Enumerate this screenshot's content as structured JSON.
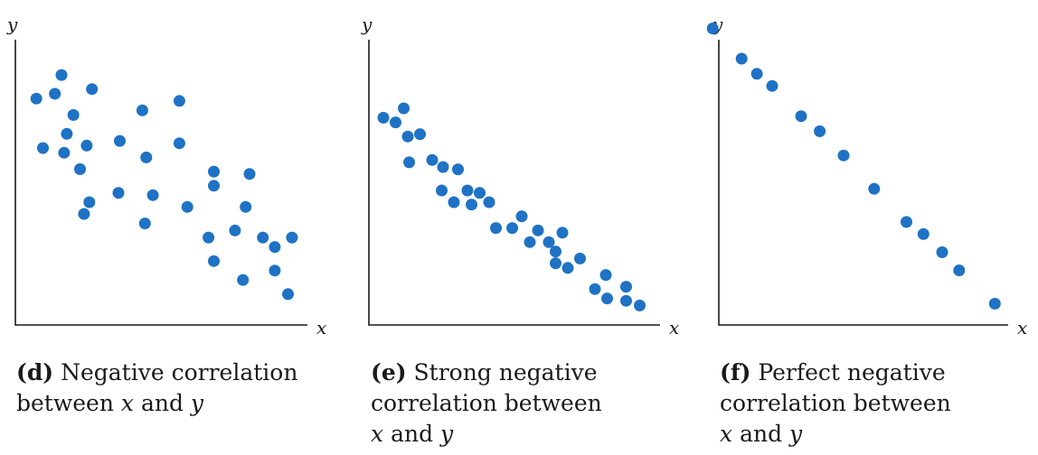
{
  "chart_data": [
    {
      "type": "scatter",
      "id": "d",
      "caption_letter": "(d)",
      "caption_pre": "Negative correlation",
      "caption_line2_pre": "between",
      "caption_var_x": "x",
      "caption_and": "and",
      "caption_var_y": "y",
      "xlabel": "x",
      "ylabel": "y",
      "xlim": [
        0,
        10
      ],
      "ylim": [
        0,
        10
      ],
      "grid": false,
      "color": "#1f72c4",
      "points": [
        {
          "x": 0.45,
          "y": 8.5
        },
        {
          "x": 0.7,
          "y": 6.4
        },
        {
          "x": 1.15,
          "y": 8.7
        },
        {
          "x": 1.4,
          "y": 9.5
        },
        {
          "x": 1.5,
          "y": 6.2
        },
        {
          "x": 1.6,
          "y": 7.0
        },
        {
          "x": 1.85,
          "y": 7.8
        },
        {
          "x": 2.1,
          "y": 5.5
        },
        {
          "x": 2.25,
          "y": 3.6
        },
        {
          "x": 2.35,
          "y": 6.5
        },
        {
          "x": 2.45,
          "y": 4.1
        },
        {
          "x": 2.55,
          "y": 8.9
        },
        {
          "x": 3.6,
          "y": 6.7
        },
        {
          "x": 3.55,
          "y": 4.5
        },
        {
          "x": 4.45,
          "y": 8.0
        },
        {
          "x": 4.6,
          "y": 6.0
        },
        {
          "x": 4.55,
          "y": 3.2
        },
        {
          "x": 4.85,
          "y": 4.4
        },
        {
          "x": 5.85,
          "y": 8.4
        },
        {
          "x": 5.85,
          "y": 6.6
        },
        {
          "x": 6.15,
          "y": 3.9
        },
        {
          "x": 6.95,
          "y": 2.6
        },
        {
          "x": 7.15,
          "y": 5.4
        },
        {
          "x": 7.15,
          "y": 4.8
        },
        {
          "x": 7.15,
          "y": 1.6
        },
        {
          "x": 7.95,
          "y": 2.9
        },
        {
          "x": 8.25,
          "y": 0.8
        },
        {
          "x": 8.35,
          "y": 3.9
        },
        {
          "x": 8.5,
          "y": 5.3
        },
        {
          "x": 9.0,
          "y": 2.6
        },
        {
          "x": 9.45,
          "y": 2.2
        },
        {
          "x": 9.45,
          "y": 1.2
        },
        {
          "x": 10.1,
          "y": 2.6
        },
        {
          "x": 9.95,
          "y": 0.2
        }
      ]
    },
    {
      "type": "scatter",
      "id": "e",
      "caption_letter": "(e)",
      "caption_pre": "Strong negative",
      "caption_line2_pre": "correlation between",
      "caption_var_x": "x",
      "caption_and": "and",
      "caption_var_y": "y",
      "xlabel": "x",
      "ylabel": "y",
      "xlim": [
        0,
        10
      ],
      "ylim": [
        0,
        10
      ],
      "grid": false,
      "color": "#1f72c4",
      "points": [
        {
          "x": 0.4,
          "y": 8.1
        },
        {
          "x": 0.85,
          "y": 7.9
        },
        {
          "x": 1.15,
          "y": 8.5
        },
        {
          "x": 1.3,
          "y": 7.3
        },
        {
          "x": 1.35,
          "y": 6.2
        },
        {
          "x": 1.75,
          "y": 7.4
        },
        {
          "x": 2.2,
          "y": 6.3
        },
        {
          "x": 2.6,
          "y": 6.0
        },
        {
          "x": 2.55,
          "y": 5.0
        },
        {
          "x": 3.15,
          "y": 5.9
        },
        {
          "x": 3.0,
          "y": 4.5
        },
        {
          "x": 3.5,
          "y": 5.0
        },
        {
          "x": 3.65,
          "y": 4.4
        },
        {
          "x": 3.95,
          "y": 4.9
        },
        {
          "x": 4.3,
          "y": 4.5
        },
        {
          "x": 4.55,
          "y": 3.4
        },
        {
          "x": 5.15,
          "y": 3.4
        },
        {
          "x": 5.5,
          "y": 3.9
        },
        {
          "x": 5.8,
          "y": 2.8
        },
        {
          "x": 6.1,
          "y": 3.3
        },
        {
          "x": 6.5,
          "y": 2.8
        },
        {
          "x": 6.75,
          "y": 2.4
        },
        {
          "x": 6.75,
          "y": 1.9
        },
        {
          "x": 7.0,
          "y": 3.2
        },
        {
          "x": 7.2,
          "y": 1.7
        },
        {
          "x": 7.65,
          "y": 2.1
        },
        {
          "x": 8.2,
          "y": 0.8
        },
        {
          "x": 8.6,
          "y": 1.4
        },
        {
          "x": 8.65,
          "y": 0.4
        },
        {
          "x": 9.35,
          "y": 0.9
        },
        {
          "x": 9.35,
          "y": 0.3
        },
        {
          "x": 9.85,
          "y": 0.1
        }
      ]
    },
    {
      "type": "scatter",
      "id": "f",
      "caption_letter": "(f)",
      "caption_pre": "Perfect negative",
      "caption_line2_pre": "correlation between",
      "caption_var_x": "x",
      "caption_and": "and",
      "caption_var_y": "y",
      "xlabel": "x",
      "ylabel": "y",
      "xlim": [
        0,
        10
      ],
      "ylim": [
        0,
        10
      ],
      "grid": false,
      "color": "#1f72c4",
      "points": [
        {
          "x": 0.75,
          "y": 9.0
        },
        {
          "x": 1.6,
          "y": 8.0
        },
        {
          "x": 2.05,
          "y": 7.5
        },
        {
          "x": 2.5,
          "y": 7.1
        },
        {
          "x": 3.35,
          "y": 6.1
        },
        {
          "x": 3.9,
          "y": 5.6
        },
        {
          "x": 4.6,
          "y": 4.8
        },
        {
          "x": 5.5,
          "y": 3.7
        },
        {
          "x": 6.45,
          "y": 2.6
        },
        {
          "x": 6.95,
          "y": 2.2
        },
        {
          "x": 7.5,
          "y": 1.6
        },
        {
          "x": 8.0,
          "y": 1.0
        },
        {
          "x": 9.05,
          "y": -0.1
        }
      ]
    }
  ]
}
